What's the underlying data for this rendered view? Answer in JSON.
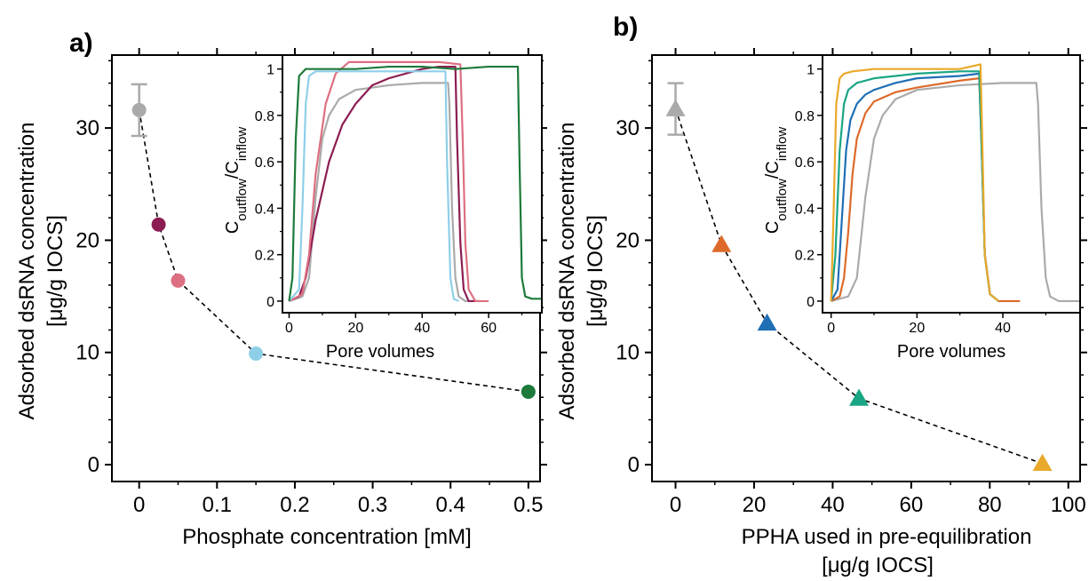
{
  "panels": [
    {
      "letter": "a)",
      "ylabel_line1": "Adsorbed dsRNA concentration",
      "ylabel_line2": "[μg/g IOCS]",
      "xlabel_line1": "Phosphate concentration [mM]",
      "xlabel_line2": "",
      "inset_ylabel": {
        "c": "C",
        "sub1": "outflow",
        "slash": "/C",
        "sub2": "inflow"
      },
      "inset_xlabel": "Pore volumes"
    },
    {
      "letter": "b)",
      "ylabel_line1": "Adsorbed dsRNA concentration",
      "ylabel_line2": "[μg/g IOCS]",
      "xlabel_line1": "PPHA used in pre-equilibration",
      "xlabel_line2": "[μg/g IOCS]",
      "inset_ylabel": {
        "c": "C",
        "sub1": "outflow",
        "slash": "/C",
        "sub2": "inflow"
      },
      "inset_xlabel": "Pore volumes"
    }
  ],
  "chart_data": [
    {
      "type": "scatter",
      "panel": "a)",
      "xlabel": "Phosphate concentration [mM]",
      "ylabel": "Adsorbed dsRNA concentration [μg/g IOCS]",
      "xlim": [
        -0.035,
        0.515
      ],
      "ylim": [
        -1.5,
        36.5
      ],
      "xticks": [
        0,
        0.1,
        0.2,
        0.3,
        0.4,
        0.5
      ],
      "xtick_labels": [
        "0",
        "0.1",
        "0.2",
        "0.3",
        "0.4",
        "0.5"
      ],
      "yticks": [
        0,
        10,
        20,
        30
      ],
      "ytick_labels": [
        "0",
        "10",
        "20",
        "30"
      ],
      "marker": "circle",
      "connector": "dashed",
      "points": [
        {
          "x": 0,
          "y": 31.6,
          "err": 2.3,
          "color": "#aaaaaa"
        },
        {
          "x": 0.025,
          "y": 21.4,
          "color": "#8c1d52"
        },
        {
          "x": 0.05,
          "y": 16.4,
          "color": "#dd6f82"
        },
        {
          "x": 0.15,
          "y": 9.9,
          "color": "#8ecfe8"
        },
        {
          "x": 0.5,
          "y": 6.5,
          "color": "#1d7a3a"
        }
      ],
      "inset": {
        "type": "line",
        "xlabel": "Pore volumes",
        "ylabel": "Coutflow/Cinflow",
        "xlim": [
          -2,
          76
        ],
        "ylim": [
          -0.05,
          1.06
        ],
        "xticks": [
          0,
          20,
          40,
          60
        ],
        "xtick_labels": [
          "0",
          "20",
          "40",
          "60"
        ],
        "yticks": [
          0,
          0.2,
          0.4,
          0.6,
          0.8,
          1
        ],
        "ytick_labels": [
          "0",
          "0.2",
          "0.4",
          "0.6",
          "0.8",
          "1"
        ],
        "series": [
          {
            "color": "#aaaaaa",
            "x": [
              0,
              4,
              6,
              8,
              10,
              12,
              15,
              20,
              30,
              40,
              47.8,
              48.2,
              49,
              50,
              51,
              53,
              56
            ],
            "y": [
              0,
              0.02,
              0.1,
              0.45,
              0.7,
              0.8,
              0.87,
              0.91,
              0.93,
              0.94,
              0.94,
              0.85,
              0.4,
              0.1,
              0.02,
              0,
              0
            ]
          },
          {
            "color": "#8c1d52",
            "x": [
              0,
              3,
              5,
              8,
              12,
              16,
              20,
              25,
              30,
              40,
              45,
              50,
              50.5,
              51.5,
              52.5,
              54,
              57
            ],
            "y": [
              0,
              0.02,
              0.1,
              0.35,
              0.6,
              0.76,
              0.85,
              0.93,
              0.96,
              1.0,
              1.01,
              1.01,
              0.7,
              0.25,
              0.05,
              0,
              0
            ]
          },
          {
            "color": "#dd6f82",
            "x": [
              0,
              4,
              6,
              8,
              11,
              14,
              18,
              20,
              30,
              40,
              45,
              51.5,
              52.2,
              53,
              54,
              56,
              60
            ],
            "y": [
              0,
              0.03,
              0.2,
              0.55,
              0.85,
              0.98,
              1.03,
              1.03,
              1.03,
              1.03,
              1.03,
              1.02,
              0.7,
              0.25,
              0.05,
              0,
              0
            ]
          },
          {
            "color": "#8ecfe8",
            "x": [
              0,
              3,
              4,
              5,
              6,
              8,
              12,
              20,
              30,
              40,
              47,
              47.5,
              48.5,
              49.5,
              51
            ],
            "y": [
              0,
              0.05,
              0.4,
              0.85,
              0.97,
              0.99,
              0.99,
              0.99,
              0.99,
              0.99,
              0.99,
              0.6,
              0.1,
              0.01,
              0
            ]
          },
          {
            "color": "#1d7a3a",
            "x": [
              0,
              1,
              2,
              3,
              5,
              10,
              20,
              30,
              40,
              50,
              60,
              68.8,
              69.3,
              70,
              71,
              73,
              76
            ],
            "y": [
              0,
              0.1,
              0.7,
              0.97,
              1.0,
              1.0,
              1.0,
              1.01,
              1.01,
              1.0,
              1.01,
              1.01,
              0.6,
              0.1,
              0.02,
              0.01,
              0.01
            ]
          }
        ]
      }
    },
    {
      "type": "scatter",
      "panel": "b)",
      "xlabel": "PPHA used in pre-equilibration [μg/g IOCS]",
      "ylabel": "Adsorbed dsRNA concentration [μg/g IOCS]",
      "xlim": [
        -6,
        103
      ],
      "ylim": [
        -1.5,
        36.5
      ],
      "xticks": [
        0,
        20,
        40,
        60,
        80,
        100
      ],
      "xtick_labels": [
        "0",
        "20",
        "40",
        "60",
        "80",
        "100"
      ],
      "yticks": [
        0,
        10,
        20,
        30
      ],
      "ytick_labels": [
        "0",
        "10",
        "20",
        "30"
      ],
      "marker": "triangle",
      "connector": "dashed",
      "points": [
        {
          "x": 0,
          "y": 31.7,
          "err": 2.3,
          "color": "#aaaaaa"
        },
        {
          "x": 11.7,
          "y": 19.6,
          "color": "#dd6a2a"
        },
        {
          "x": 23.3,
          "y": 12.6,
          "color": "#1f6fb5"
        },
        {
          "x": 46.7,
          "y": 5.9,
          "color": "#1aa584"
        },
        {
          "x": 93.4,
          "y": 0.1,
          "color": "#e9a92a"
        }
      ],
      "inset": {
        "type": "line",
        "xlabel": "Pore volumes",
        "ylabel": "Coutflow/Cinflow",
        "xlim": [
          -2,
          58
        ],
        "ylim": [
          -0.05,
          1.06
        ],
        "xticks": [
          0,
          20,
          40
        ],
        "xtick_labels": [
          "0",
          "20",
          "40"
        ],
        "yticks": [
          0,
          0.2,
          0.4,
          0.6,
          0.8,
          1
        ],
        "ytick_labels": [
          "0",
          "0.2",
          "0.4",
          "0.6",
          "0.8",
          "1"
        ],
        "series": [
          {
            "color": "#aaaaaa",
            "x": [
              0,
              4,
              6,
              8,
              10,
              12,
              15,
              20,
              30,
              40,
              47.8,
              48.2,
              49,
              50,
              51,
              53,
              58
            ],
            "y": [
              0,
              0.02,
              0.1,
              0.45,
              0.7,
              0.8,
              0.87,
              0.91,
              0.93,
              0.94,
              0.94,
              0.85,
              0.4,
              0.1,
              0.02,
              0,
              0
            ]
          },
          {
            "color": "#dd6a2a",
            "x": [
              0,
              2,
              3,
              4,
              5,
              6,
              8,
              10,
              15,
              20,
              30,
              34.5,
              35,
              35.8,
              37,
              39,
              44
            ],
            "y": [
              0,
              0.02,
              0.1,
              0.3,
              0.55,
              0.7,
              0.81,
              0.86,
              0.9,
              0.92,
              0.95,
              0.96,
              0.7,
              0.2,
              0.03,
              0,
              0
            ]
          },
          {
            "color": "#1f6fb5",
            "x": [
              0,
              1.5,
              2.5,
              3.5,
              4.5,
              6,
              8,
              10,
              15,
              20,
              30,
              34.5,
              35,
              35.8,
              37,
              39
            ],
            "y": [
              0,
              0.05,
              0.35,
              0.65,
              0.78,
              0.85,
              0.89,
              0.91,
              0.94,
              0.96,
              0.97,
              0.98,
              0.7,
              0.2,
              0.03,
              0
            ]
          },
          {
            "color": "#1aa584",
            "x": [
              0,
              1,
              2,
              3,
              4,
              6,
              10,
              15,
              20,
              30,
              34.5,
              35,
              35.8,
              37,
              39
            ],
            "y": [
              0,
              0.2,
              0.65,
              0.85,
              0.91,
              0.94,
              0.96,
              0.97,
              0.98,
              0.99,
              0.99,
              0.7,
              0.2,
              0.03,
              0
            ]
          },
          {
            "color": "#e9a92a",
            "x": [
              0,
              0.6,
              1.2,
              2,
              3,
              5,
              10,
              20,
              30,
              34.8,
              35.2,
              35.8,
              37,
              39
            ],
            "y": [
              0,
              0.4,
              0.85,
              0.96,
              0.98,
              0.99,
              1.0,
              1.0,
              1.0,
              1.02,
              0.7,
              0.2,
              0.03,
              0
            ]
          }
        ]
      }
    }
  ]
}
